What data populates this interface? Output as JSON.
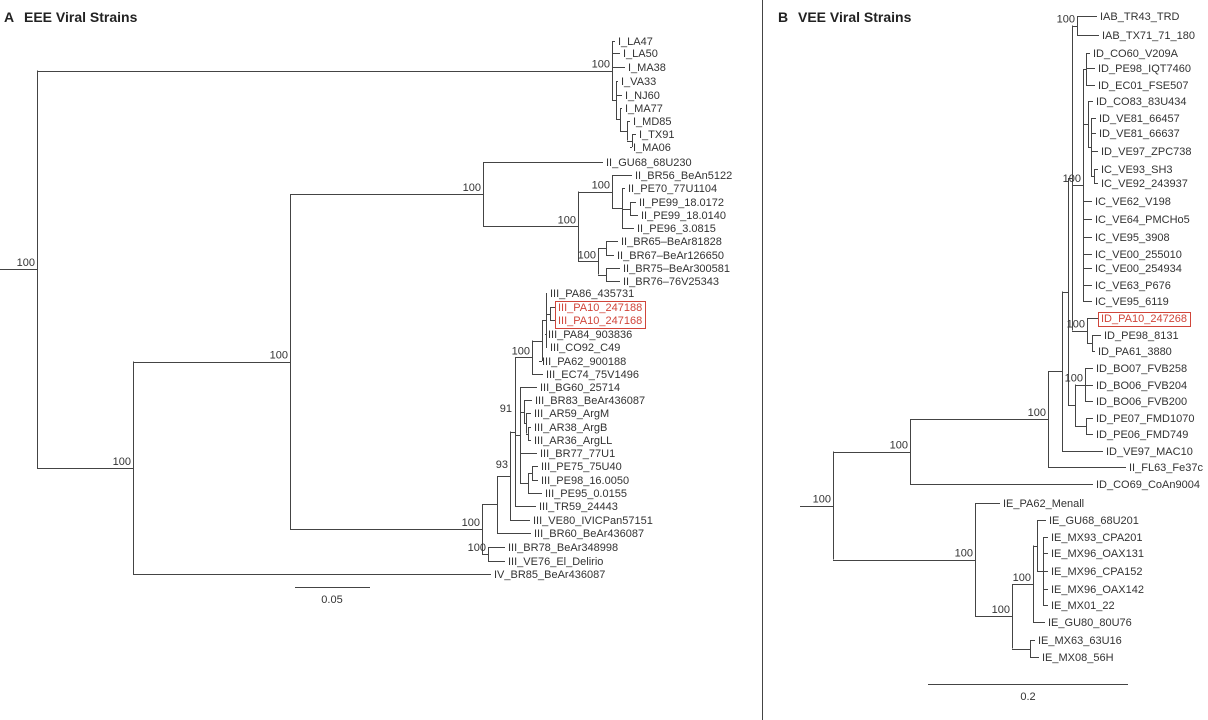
{
  "panels": {
    "a": {
      "letter": "A",
      "title": "EEE Viral Strains",
      "scale_label": "0.05",
      "highlight_color": "#d0453a",
      "highlighted": [
        20,
        21
      ],
      "leaves": [
        "I_LA47",
        "I_LA50",
        "I_MA38",
        "I_VA33",
        "I_NJ60",
        "I_MA77",
        "I_MD85",
        "I_TX91",
        "I_MA06",
        "II_GU68_68U230",
        "II_BR56_BeAn5122",
        "II_PE70_77U1104",
        "II_PE99_18.0172",
        "II_PE99_18.0140",
        "II_PE96_3.0815",
        "II_BR65–BeAr81828",
        "II_BR67–BeAr126650",
        "II_BR75–BeAr300581",
        "II_BR76–76V25343",
        "III_PA86_435731",
        "III_PA10_247188",
        "III_PA10_247168",
        "III_PA84_903836",
        "III_CO92_C49",
        "III_PA62_900188",
        "III_EC74_75V1496",
        "III_BG60_25714",
        "III_BR83_BeAr436087",
        "III_AR59_ArgM",
        "III_AR38_ArgB",
        "III_AR36_ArgLL",
        "III_BR77_77U1",
        "III_PE75_75U40",
        "III_PE98_16.0050",
        "III_PE95_0.0155",
        "III_TR59_24443",
        "III_VE80_IVICPan57151",
        "III_BR60_BeAr436087",
        "III_BR78_BeAr348998",
        "III_VE76_El_Delirio",
        "IV_BR85_BeAr436087"
      ],
      "bootstrap": [
        "100",
        "100",
        "100",
        "100",
        "100",
        "100",
        "100",
        "100",
        "100",
        "91",
        "93",
        "100",
        "100"
      ]
    },
    "b": {
      "letter": "B",
      "title": "VEE Viral Strains",
      "scale_label": "0.2",
      "highlight_color": "#d0453a",
      "highlighted": [
        18
      ],
      "leaves": [
        "IAB_TR43_TRD",
        "IAB_TX71_71_180",
        "ID_CO60_V209A",
        "ID_PE98_IQT7460",
        "ID_EC01_FSE507",
        "ID_CO83_83U434",
        "ID_VE81_66457",
        "ID_VE81_66637",
        "ID_VE97_ZPC738",
        "IC_VE93_SH3",
        "IC_VE92_243937",
        "IC_VE62_V198",
        "IC_VE64_PMCHo5",
        "IC_VE95_3908",
        "IC_VE00_255010",
        "IC_VE00_254934",
        "IC_VE63_P676",
        "IC_VE95_6119",
        "ID_PA10_247268",
        "ID_PE98_8131",
        "ID_PA61_3880",
        "ID_BO07_FVB258",
        "ID_BO06_FVB204",
        "ID_BO06_FVB200",
        "ID_PE07_FMD1070",
        "ID_PE06_FMD749",
        "ID_VE97_MAC10",
        "II_FL63_Fe37c",
        "ID_CO69_CoAn9004",
        "IE_PA62_Menall",
        "IE_GU68_68U201",
        "IE_MX93_CPA201",
        "IE_MX96_OAX131",
        "IE_MX96_CPA152",
        "IE_MX96_OAX142",
        "IE_MX01_22",
        "IE_GU80_80U76",
        "IE_MX63_63U16",
        "IE_MX08_56H"
      ],
      "bootstrap": [
        "100",
        "100",
        "100",
        "100",
        "100",
        "100",
        "100",
        "100",
        "100",
        "100"
      ]
    }
  }
}
